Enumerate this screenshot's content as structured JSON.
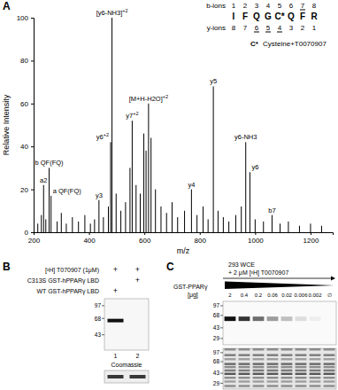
{
  "chart_data": {
    "type": "stem",
    "panel": "A",
    "x_label": "m/z",
    "y_label": "Relative Intensity",
    "color": "#000000",
    "xlim": [
      200,
      1280
    ],
    "xticks": [
      200,
      400,
      600,
      800,
      1000,
      1200
    ],
    "ylim": [
      0,
      100
    ],
    "yticks": [
      0,
      20,
      40,
      60,
      80,
      100
    ],
    "x": [
      215,
      228,
      236,
      244,
      256,
      263,
      285,
      300,
      318,
      340,
      362,
      385,
      405,
      420,
      436,
      452,
      470,
      478,
      483,
      498,
      515,
      532,
      548,
      556,
      570,
      585,
      598,
      606,
      615,
      624,
      640,
      660,
      680,
      700,
      720,
      745,
      770,
      790,
      812,
      830,
      849,
      866,
      885,
      905,
      930,
      950,
      966,
      981,
      1000,
      1030,
      1061,
      1090,
      1120,
      1160,
      1200,
      1240
    ],
    "values": [
      4,
      8,
      22,
      6,
      30,
      17,
      5,
      9,
      4,
      7,
      5,
      8,
      4,
      6,
      15,
      7,
      12,
      42,
      100,
      18,
      10,
      14,
      30,
      52,
      22,
      18,
      46,
      38,
      60,
      44,
      20,
      12,
      9,
      14,
      7,
      10,
      20,
      8,
      12,
      6,
      68,
      10,
      7,
      5,
      8,
      12,
      42,
      28,
      6,
      5,
      8,
      4,
      5,
      3,
      4,
      3
    ],
    "peak_labels": [
      null,
      null,
      "a2",
      null,
      "b QF(FQ)",
      "a QF(FQ)",
      null,
      null,
      null,
      null,
      null,
      null,
      null,
      null,
      "y3",
      null,
      null,
      "y6+2",
      "[y6-NH3]+2",
      null,
      null,
      null,
      null,
      "y7+2",
      null,
      null,
      null,
      null,
      "[M+H-H2O]+2",
      null,
      null,
      null,
      null,
      null,
      null,
      null,
      "y4",
      null,
      null,
      null,
      "y5",
      null,
      null,
      null,
      null,
      null,
      "y6-NH3",
      "y6",
      null,
      null,
      "b7",
      null,
      null,
      null,
      null,
      null
    ]
  },
  "sequence": {
    "b_label": "b-ions",
    "b_numbers": [
      1,
      2,
      3,
      4,
      5,
      6,
      7,
      8
    ],
    "b_underlined": [
      7
    ],
    "residues": [
      "I",
      "F",
      "Q",
      "G",
      "C*",
      "Q",
      "F",
      "R"
    ],
    "y_label": "y-ions",
    "y_numbers": [
      8,
      7,
      6,
      5,
      4,
      3,
      2,
      1
    ],
    "y_underlined": [
      6,
      5,
      4
    ],
    "note_symbol": "C*",
    "note": "Cysteine+T0070907"
  },
  "panel_b": {
    "panel": "B",
    "conditions": [
      {
        "label": "[³H] T070907 (1μM)",
        "lanes": [
          "+",
          "+"
        ]
      },
      {
        "label": "C313S GST-hPPARγ LBD",
        "lanes": [
          null,
          "+"
        ]
      },
      {
        "label": "WT GST-hPPARγ LBD",
        "lanes": [
          "+",
          null
        ]
      }
    ],
    "lane_numbers": [
      1,
      2
    ],
    "markers": [
      97,
      68,
      43
    ],
    "ylim": [
      28,
      118
    ],
    "bands": [
      {
        "lane": 1,
        "kda": 64,
        "intensity": 1
      }
    ],
    "stain_label": "Coomassie",
    "stain_intensity": [
      0.9,
      0.9
    ]
  },
  "panel_c": {
    "panel": "C",
    "treatment": [
      "293 WCE",
      "+ 2 μM [³H] T0070907"
    ],
    "titration_label": [
      "GST-PPARγ",
      "[μg]"
    ],
    "amount_labels": [
      "2",
      "0.4",
      "0.2",
      "0.06",
      "0.02",
      "0.006",
      "0.002",
      "∅"
    ],
    "autoradiograph": {
      "markers": [
        97,
        68,
        43,
        29
      ],
      "ylim": [
        23,
        114
      ],
      "band_kda": 60,
      "band_intensity": [
        1,
        0.85,
        0.6,
        0.4,
        0.25,
        0.12,
        0.05,
        0
      ]
    },
    "coomassie": {
      "markers": [
        97,
        68,
        43,
        29
      ],
      "ylim": [
        23,
        115
      ],
      "band_kda": [
        110,
        88,
        75,
        62,
        55,
        48,
        42,
        36,
        31,
        26
      ],
      "band_intensity": [
        0.5,
        0.6,
        0.4,
        0.7,
        0.5,
        0.6,
        0.8,
        0.5,
        0.4,
        0.5
      ]
    }
  }
}
